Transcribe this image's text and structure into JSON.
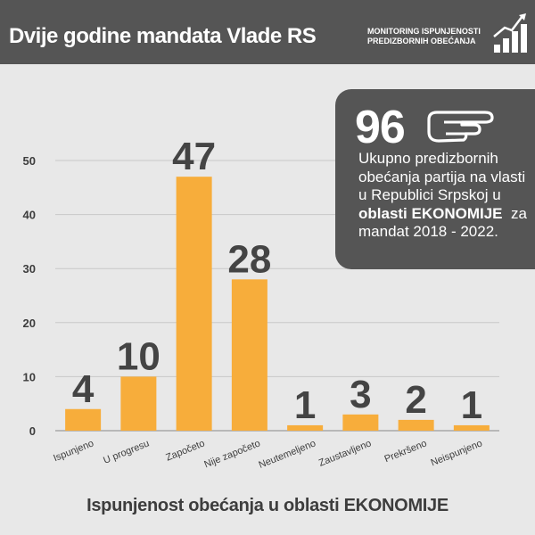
{
  "header": {
    "title": "Dvije godine mandata Vlade RS",
    "tag_line1": "MONITORING ISPUNJENOSTI",
    "tag_line2": "PREDIZBORNIH OBEĆANJA",
    "icon": "rising-bars-icon"
  },
  "stats": {
    "number": "96",
    "icon": "pointing-hand-icon",
    "text_part1": "Ukupno predizbornih obećanja partija na vlasti u Republici Srpskoj u",
    "text_bold": "oblasti EKONOMIJE",
    "text_part2": "za mandat 2018 - 2022."
  },
  "colors": {
    "header_bg": "#555555",
    "bar": "#f7ad3b",
    "value_label": "#444444",
    "background": "#e8e8e8"
  },
  "chart_data": {
    "type": "bar",
    "categories": [
      "Ispunjeno",
      "U progresu",
      "Započeto",
      "Nije započeto",
      "Neutemeljeno",
      "Zaustavljeno",
      "Prekršeno",
      "Neispunjeno"
    ],
    "values": [
      4,
      10,
      47,
      28,
      1,
      3,
      2,
      1
    ],
    "value_labels": [
      "4",
      "10",
      "47",
      "28",
      "1",
      "3",
      "2",
      "1"
    ],
    "yticks": [
      "0",
      "10",
      "20",
      "30",
      "40",
      "50"
    ],
    "ylim": [
      0,
      50
    ],
    "grid": true,
    "title": "Ispunjenost obećanja u oblasti EKONOMIJE",
    "xlabel": "",
    "ylabel": ""
  }
}
